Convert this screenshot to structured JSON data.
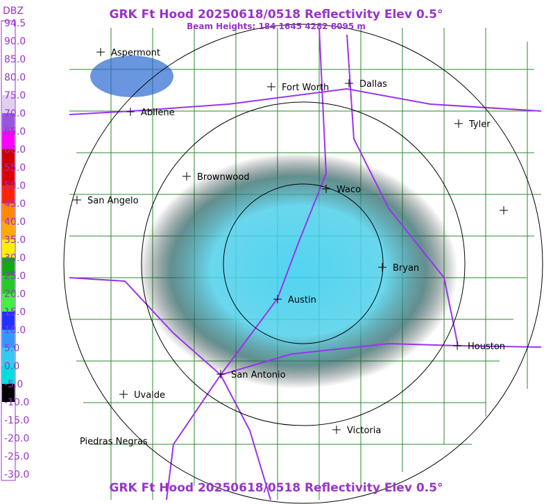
{
  "header": {
    "title": "GRK Ft Hood 20250618/0518 Reflectivity Elev 0.5°",
    "subtitle": "Beam Heights: 184 1645 4282 8095 m"
  },
  "legend": {
    "unit": "DBZ",
    "labels": [
      "94.5",
      "90.0",
      "85.0",
      "80.0",
      "75.0",
      "70.0",
      "65.0",
      "60.0",
      "55.0",
      "50.0",
      "45.0",
      "40.0",
      "35.0",
      "30.0",
      "25.0",
      "20.0",
      "15.0",
      "10.0",
      "5.0",
      "0.0",
      "-5.0",
      "-10.0",
      "-15.0",
      "-20.0",
      "-25.0",
      "-30.0"
    ]
  },
  "cities": [
    "Aspermont",
    "Abilene",
    "Fort Worth",
    "Dallas",
    "Tyler",
    "Brownwood",
    "Waco",
    "San Angelo",
    "Bryan",
    "Austin",
    "Houston",
    "San Antonio",
    "Uvalde",
    "Victoria",
    "Piedras Negras"
  ],
  "footer": {
    "title": "GRK Ft Hood 20250618/0518 Reflectivity Elev 0.5°"
  }
}
